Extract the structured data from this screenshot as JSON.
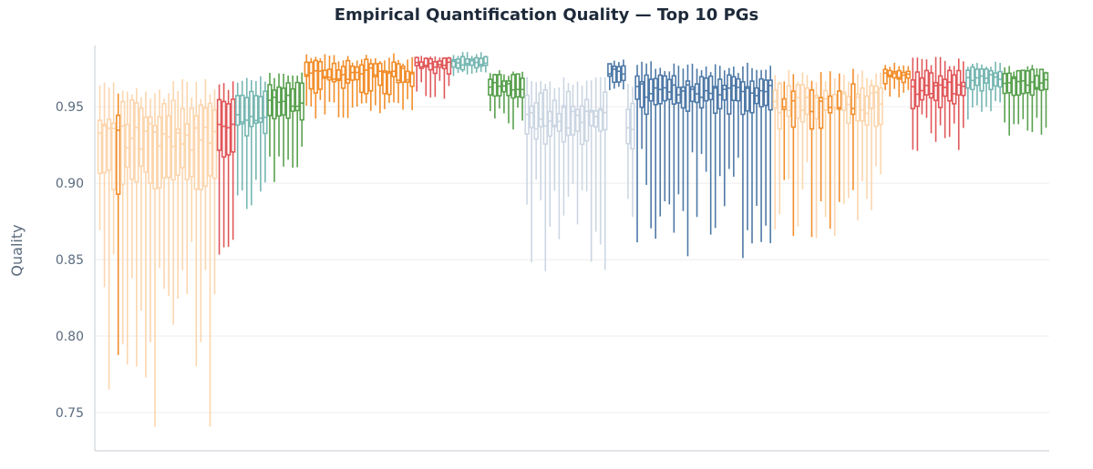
{
  "chart_data": {
    "type": "box",
    "title": "Empirical Quantification Quality — Top 10 PGs",
    "xlabel": "",
    "ylabel": "Quality",
    "ylim": [
      0.725,
      0.99
    ],
    "yticks": [
      0.75,
      0.8,
      0.85,
      0.9,
      0.95
    ],
    "ytick_labels": [
      "0.75",
      "0.80",
      "0.85",
      "0.90",
      "0.95"
    ],
    "grid": true,
    "legend": "none",
    "series": [
      {
        "color": "#fcd6ae",
        "n": 26,
        "highlight": [
          4
        ],
        "highlight_color": "#f28e2b",
        "median": [
          0.92,
          0.94
        ],
        "q1": [
          0.89,
          0.915
        ],
        "q3": [
          0.935,
          0.955
        ],
        "lo": [
          0.74,
          0.87
        ],
        "hi": [
          0.955,
          0.968
        ]
      },
      {
        "color": "#e15759",
        "n": 4,
        "median": [
          0.935,
          0.94
        ],
        "q1": [
          0.915,
          0.925
        ],
        "q3": [
          0.95,
          0.955
        ],
        "lo": [
          0.85,
          0.875
        ],
        "hi": [
          0.96,
          0.968
        ]
      },
      {
        "color": "#76b7b2",
        "n": 7,
        "median": [
          0.94,
          0.95
        ],
        "q1": [
          0.93,
          0.94
        ],
        "q3": [
          0.955,
          0.962
        ],
        "lo": [
          0.88,
          0.905
        ],
        "hi": [
          0.965,
          0.97
        ]
      },
      {
        "color": "#59a14f",
        "n": 8,
        "median": [
          0.95,
          0.958
        ],
        "q1": [
          0.94,
          0.948
        ],
        "q3": [
          0.96,
          0.966
        ],
        "lo": [
          0.9,
          0.925
        ],
        "hi": [
          0.968,
          0.974
        ]
      },
      {
        "color": "#f28e2b",
        "n": 24,
        "median": [
          0.966,
          0.976
        ],
        "q1": [
          0.958,
          0.97
        ],
        "q3": [
          0.972,
          0.981
        ],
        "lo": [
          0.942,
          0.955
        ],
        "hi": [
          0.978,
          0.985
        ]
      },
      {
        "color": "#e15759",
        "n": 8,
        "median": [
          0.975,
          0.98
        ],
        "q1": [
          0.97,
          0.977
        ],
        "q3": [
          0.979,
          0.983
        ],
        "lo": [
          0.955,
          0.968
        ],
        "hi": [
          0.982,
          0.985
        ]
      },
      {
        "color": "#76b7b2",
        "n": 8,
        "median": [
          0.977,
          0.981
        ],
        "q1": [
          0.974,
          0.978
        ],
        "q3": [
          0.98,
          0.983
        ],
        "lo": [
          0.97,
          0.975
        ],
        "hi": [
          0.983,
          0.986
        ]
      },
      {
        "color": "#59a14f",
        "n": 8,
        "median": [
          0.96,
          0.966
        ],
        "q1": [
          0.955,
          0.96
        ],
        "q3": [
          0.966,
          0.972
        ],
        "lo": [
          0.935,
          0.95
        ],
        "hi": [
          0.97,
          0.974
        ]
      },
      {
        "color": "#cbd6e3",
        "n": 18,
        "median": [
          0.935,
          0.95
        ],
        "q1": [
          0.925,
          0.94
        ],
        "q3": [
          0.945,
          0.962
        ],
        "lo": [
          0.842,
          0.905
        ],
        "hi": [
          0.962,
          0.97
        ]
      },
      {
        "color": "#4e79a7",
        "n": 4,
        "median": [
          0.97,
          0.975
        ],
        "q1": [
          0.965,
          0.97
        ],
        "q3": [
          0.975,
          0.979
        ],
        "lo": [
          0.96,
          0.965
        ],
        "hi": [
          0.978,
          0.981
        ]
      },
      {
        "color": "#cbd6e3",
        "n": 2,
        "median": [
          0.935,
          0.945
        ],
        "q1": [
          0.915,
          0.93
        ],
        "q3": [
          0.945,
          0.955
        ],
        "lo": [
          0.868,
          0.9
        ],
        "hi": [
          0.96,
          0.966
        ]
      },
      {
        "color": "#4e79a7",
        "n": 30,
        "highlight": [
          0
        ],
        "highlight_color": "#4e79a7",
        "median": [
          0.955,
          0.965
        ],
        "q1": [
          0.945,
          0.955
        ],
        "q3": [
          0.962,
          0.971
        ],
        "lo": [
          0.848,
          0.925
        ],
        "hi": [
          0.972,
          0.98
        ]
      },
      {
        "color": "#fcd6ae",
        "n": 24,
        "highlight": [
          2,
          4,
          8,
          10,
          12,
          14,
          17
        ],
        "highlight_color": "#f28e2b",
        "median": [
          0.945,
          0.96
        ],
        "q1": [
          0.935,
          0.95
        ],
        "q3": [
          0.955,
          0.966
        ],
        "lo": [
          0.864,
          0.92
        ],
        "hi": [
          0.966,
          0.975
        ]
      },
      {
        "color": "#f28e2b",
        "n": 6,
        "median": [
          0.968,
          0.973
        ],
        "q1": [
          0.965,
          0.97
        ],
        "q3": [
          0.972,
          0.976
        ],
        "lo": [
          0.955,
          0.965
        ],
        "hi": [
          0.976,
          0.979
        ]
      },
      {
        "color": "#e15759",
        "n": 12,
        "median": [
          0.958,
          0.968
        ],
        "q1": [
          0.948,
          0.958
        ],
        "q3": [
          0.965,
          0.974
        ],
        "lo": [
          0.92,
          0.945
        ],
        "hi": [
          0.975,
          0.983
        ]
      },
      {
        "color": "#76b7b2",
        "n": 8,
        "median": [
          0.966,
          0.972
        ],
        "q1": [
          0.96,
          0.966
        ],
        "q3": [
          0.972,
          0.976
        ],
        "lo": [
          0.94,
          0.955
        ],
        "hi": [
          0.976,
          0.98
        ]
      },
      {
        "color": "#59a14f",
        "n": 10,
        "median": [
          0.962,
          0.97
        ],
        "q1": [
          0.955,
          0.962
        ],
        "q3": [
          0.968,
          0.975
        ],
        "lo": [
          0.93,
          0.945
        ],
        "hi": [
          0.972,
          0.977
        ]
      }
    ]
  }
}
